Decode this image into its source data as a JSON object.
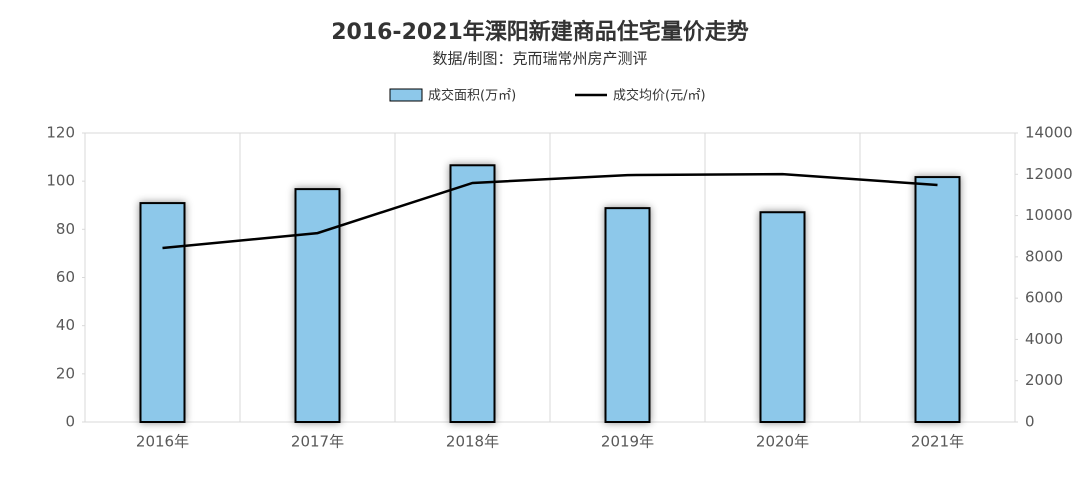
{
  "chart_data": {
    "type": "bar",
    "title": "2016-2021年溧阳新建商品住宅量价走势",
    "subtitle": "数据/制图：克而瑞常州房产测评",
    "categories": [
      "2016年",
      "2017年",
      "2018年",
      "2019年",
      "2020年",
      "2021年"
    ],
    "series": [
      {
        "name": "成交面积(万㎡)",
        "type": "bar",
        "color": "#8dc8ea",
        "values": [
          90.9,
          96.7,
          106.6,
          88.8,
          87.1,
          101.7
        ]
      },
      {
        "name": "成交均价(元/㎡)",
        "type": "line",
        "axis": "y2",
        "color": "#000000",
        "values": [
          8430,
          9150,
          11580,
          11960,
          12010,
          11480
        ]
      }
    ],
    "ylim": [
      0,
      120
    ],
    "yticks": [
      0,
      20,
      40,
      60,
      80,
      100,
      120
    ],
    "y2lim": [
      0,
      14000
    ],
    "y2ticks": [
      0,
      2000,
      4000,
      6000,
      8000,
      10000,
      12000,
      14000
    ],
    "legend": "top"
  }
}
